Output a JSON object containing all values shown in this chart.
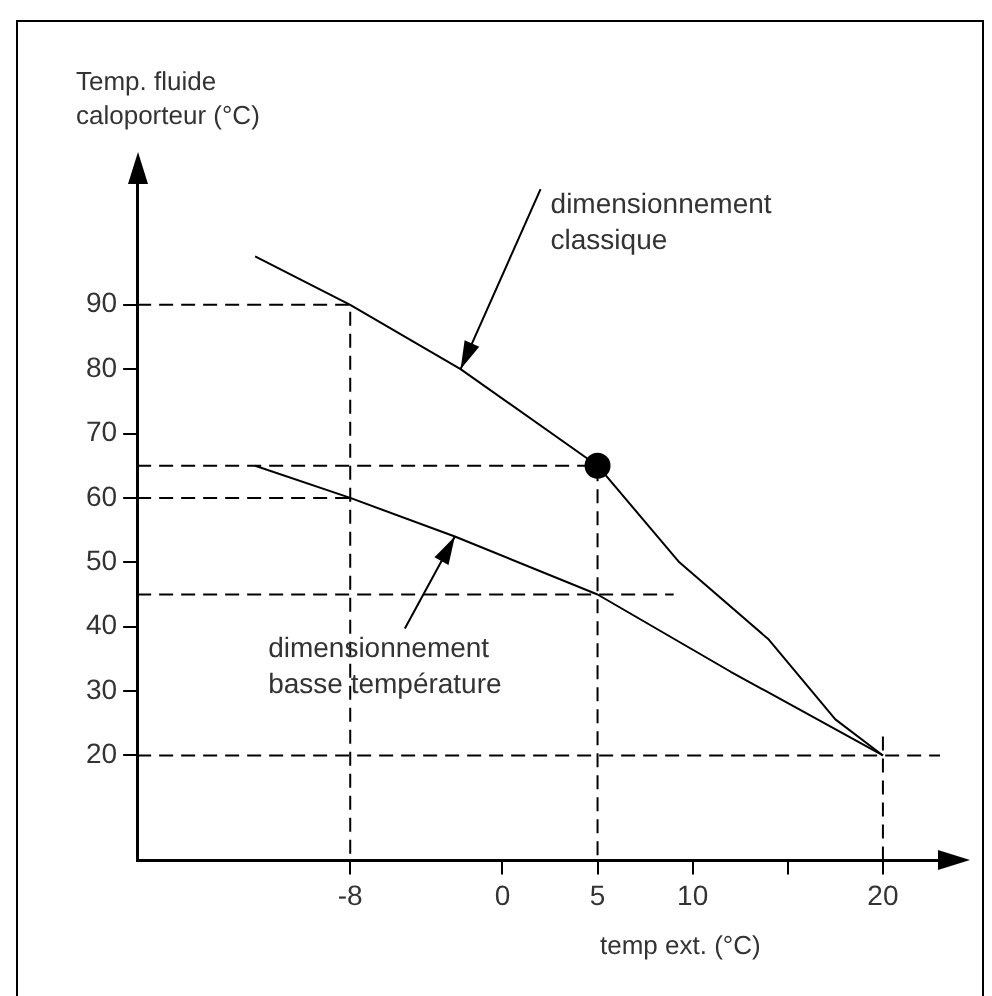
{
  "chart_data": {
    "type": "line",
    "xlabel": "temp ext. (°C)",
    "ylabel": "Temp. fluide caloporteur (°C)",
    "xlim": [
      -19.2,
      23
    ],
    "ylim": [
      3.7,
      110
    ],
    "xticks": [
      -8,
      0,
      5,
      10,
      {
        "value": 15,
        "label": null
      },
      20
    ],
    "yticks": [
      20,
      30,
      40,
      50,
      60,
      70,
      80,
      90
    ],
    "grid": false,
    "legend": false,
    "marker": "none",
    "line_style": "solid",
    "series": [
      {
        "color": "#000000",
        "x": [
          -13,
          -8,
          -2.2,
          5,
          9.3,
          14,
          17.5,
          20
        ],
        "values": [
          97.5,
          90,
          80,
          65,
          50,
          38,
          25.6,
          20
        ]
      },
      {
        "color": "#000000",
        "x": [
          -13,
          -8,
          -2.5,
          5,
          12,
          20
        ],
        "values": [
          65,
          60,
          54,
          45,
          33,
          20
        ]
      },
      {
        "color": "#000000",
        "line_style": "dashed",
        "x": [
          -19.2,
          -8,
          -8
        ],
        "values": [
          90,
          90,
          3.7
        ]
      },
      {
        "color": "#000000",
        "line_style": "dashed",
        "x": [
          -19.2,
          -8
        ],
        "values": [
          60,
          60
        ]
      },
      {
        "color": "#000000",
        "line_style": "dashed",
        "x": [
          -19.2,
          9
        ],
        "values": [
          45,
          45
        ]
      },
      {
        "color": "#000000",
        "line_style": "dashed",
        "x": [
          -19.2,
          23
        ],
        "values": [
          20,
          20
        ]
      },
      {
        "color": "#000000",
        "line_style": "dashed",
        "x": [
          20,
          20
        ],
        "values": [
          3.7,
          23
        ]
      },
      {
        "color": "#000000",
        "line_style": "dashed",
        "x": [
          -19.2,
          5,
          5
        ],
        "values": [
          65,
          65,
          3.7
        ]
      },
      {
        "type": "scatter",
        "marker": "circle",
        "color": "#000000",
        "x": [
          5
        ],
        "values": [
          65
        ]
      }
    ],
    "annotations": [
      {
        "text": "dimensionnement classique",
        "x": -2.2,
        "y": 80
      },
      {
        "text": "dimensionnement basse température",
        "x": -2.5,
        "y": 54
      }
    ]
  }
}
